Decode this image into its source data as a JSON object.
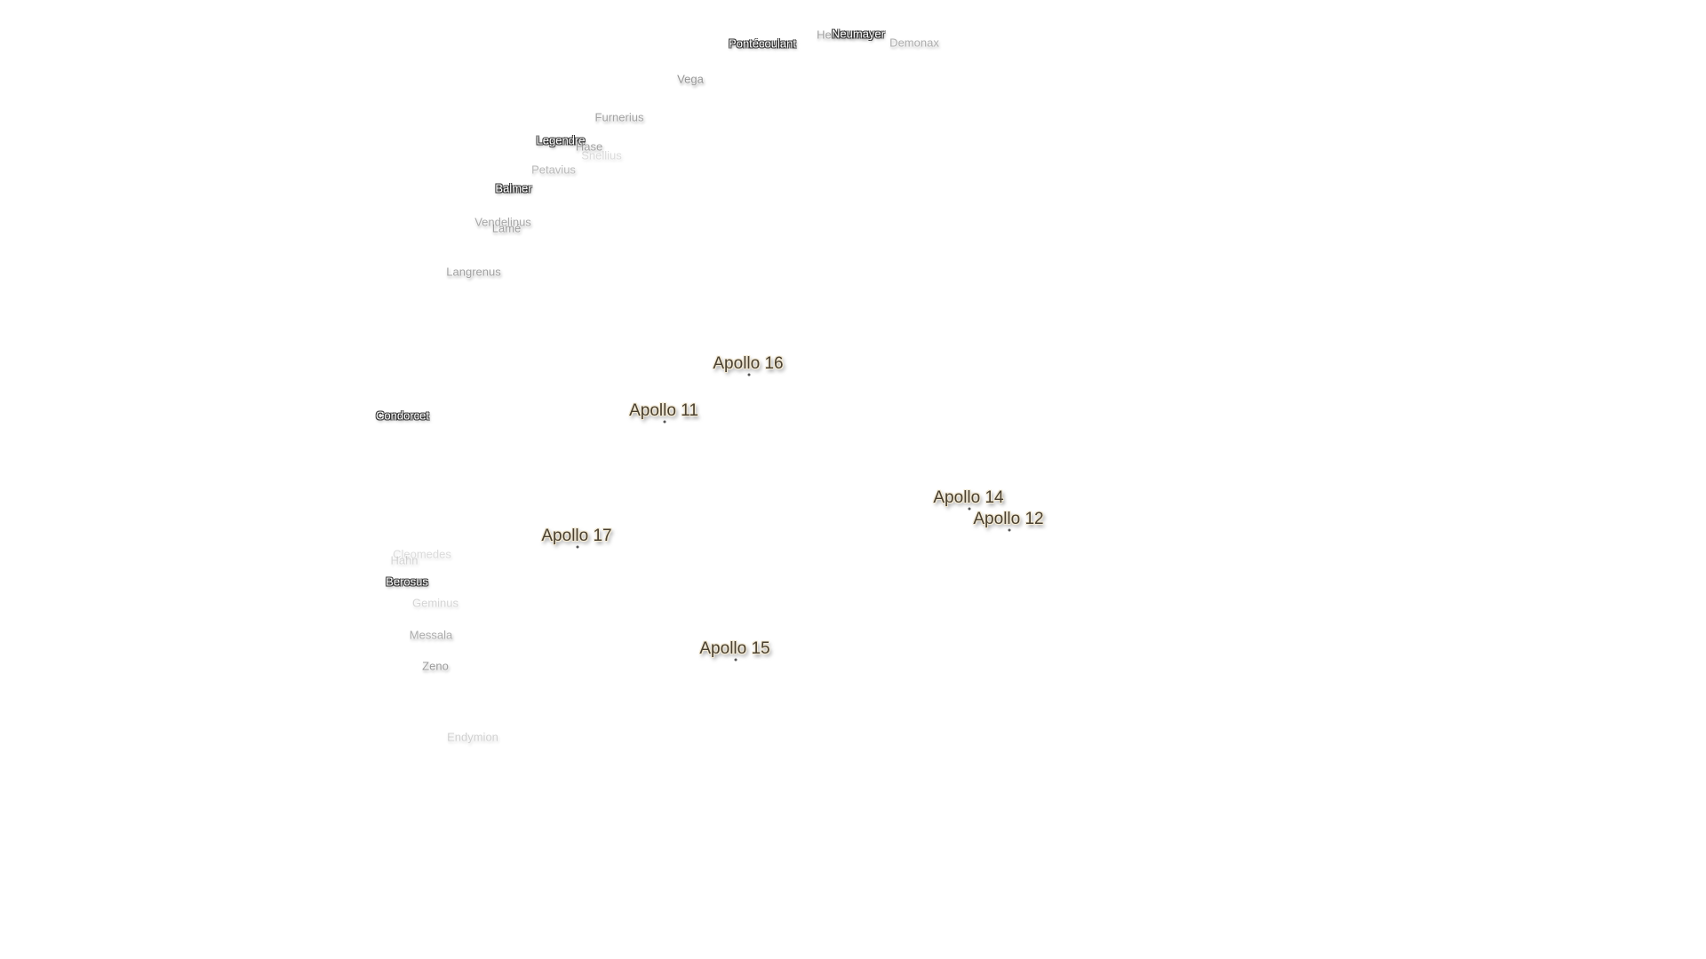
{
  "landing_sites": [
    "Apollo 16",
    "Apollo 11",
    "Apollo 14",
    "Apollo 12",
    "Apollo 17",
    "Apollo 15"
  ],
  "craters": [
    "Pontécoulant",
    "Helmholtz",
    "Neumayer",
    "Demonax",
    "Vega",
    "Furnerius",
    "Legendre",
    "Hase",
    "Snellius",
    "Petavius",
    "Balmer",
    "Vendelinus",
    "Lamé",
    "Langrenus",
    "Condorcet",
    "Cleomedes",
    "Hahn",
    "Berosus",
    "Geminus",
    "Messala",
    "Zeno",
    "Endymion"
  ]
}
